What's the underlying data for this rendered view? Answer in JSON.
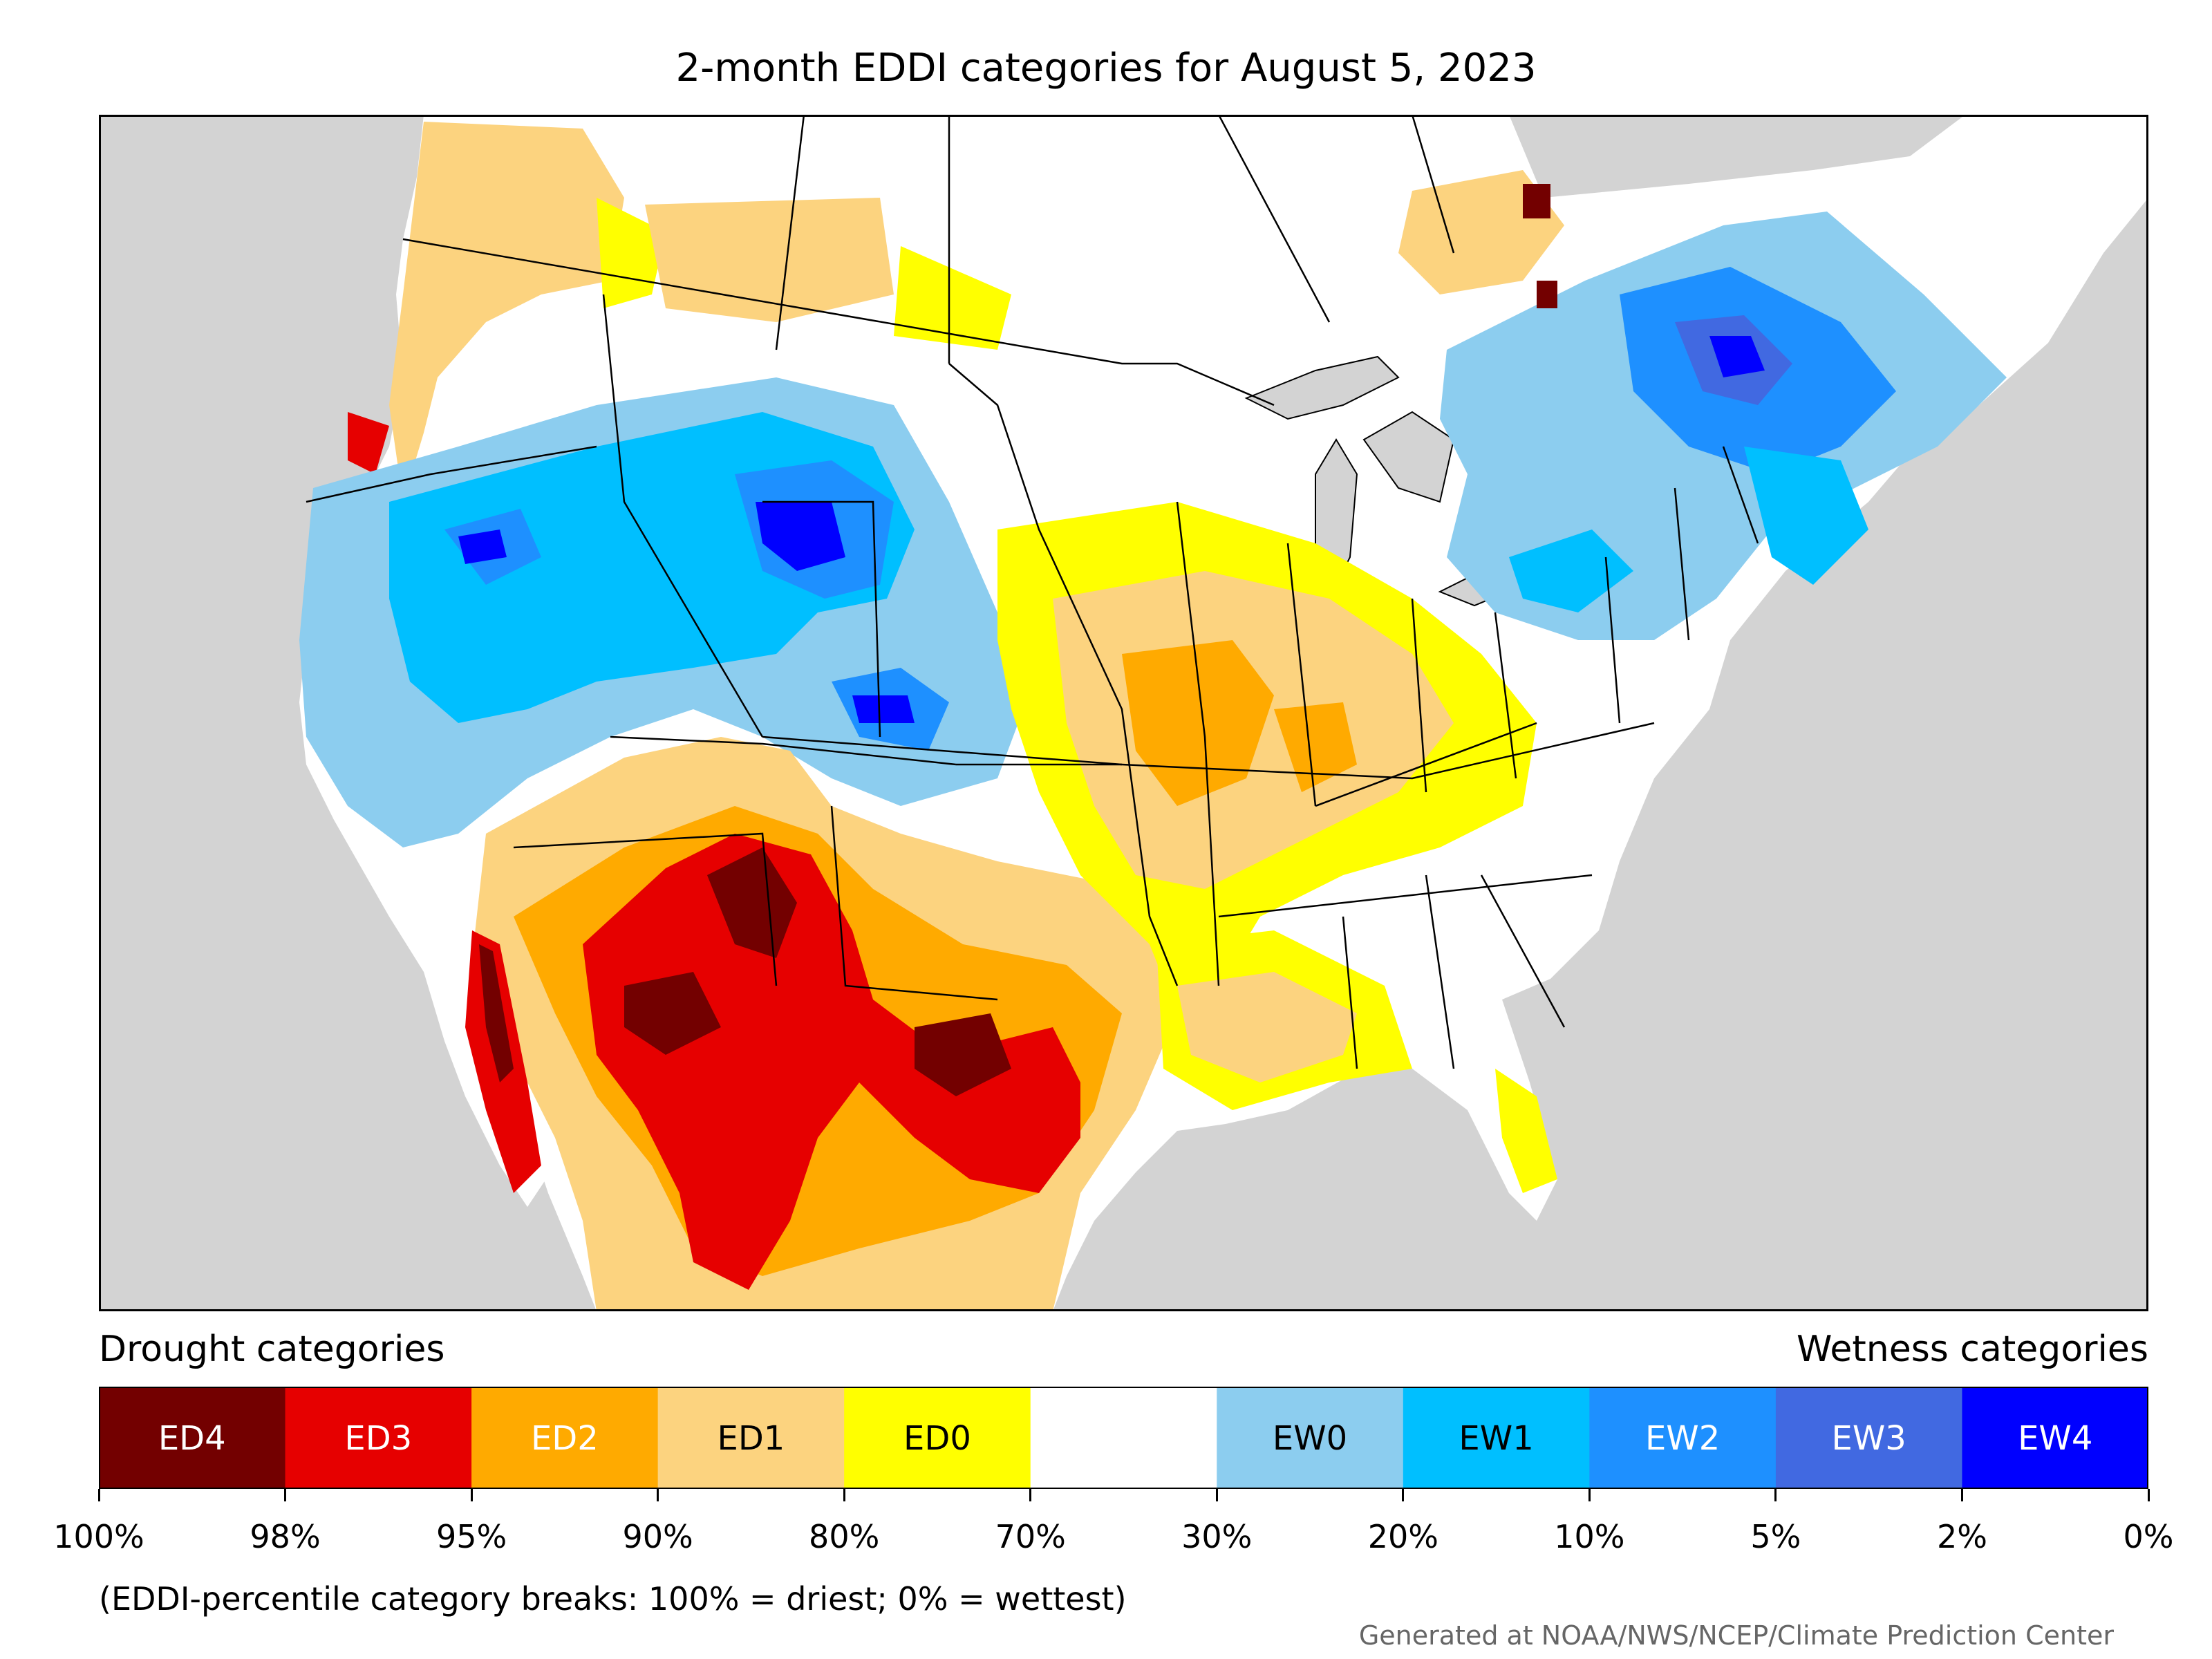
{
  "title": "2-month EDDI categories for August 5, 2023",
  "legend": {
    "drought_heading": "Drought categories",
    "wetness_heading": "Wetness categories",
    "categories": [
      {
        "label": "ED4",
        "color": "#730000",
        "text_color": "#ffffff"
      },
      {
        "label": "ED3",
        "color": "#e60000",
        "text_color": "#ffffff"
      },
      {
        "label": "ED2",
        "color": "#ffaa00",
        "text_color": "#ffffff"
      },
      {
        "label": "ED1",
        "color": "#fcd37f",
        "text_color": "#000000"
      },
      {
        "label": "ED0",
        "color": "#ffff00",
        "text_color": "#000000"
      },
      {
        "label": "",
        "color": "#ffffff",
        "text_color": "#000000"
      },
      {
        "label": "EW0",
        "color": "#8ccdef",
        "text_color": "#000000"
      },
      {
        "label": "EW1",
        "color": "#00bfff",
        "text_color": "#000000"
      },
      {
        "label": "EW2",
        "color": "#1e90ff",
        "text_color": "#ffffff"
      },
      {
        "label": "EW3",
        "color": "#4169e1",
        "text_color": "#ffffff"
      },
      {
        "label": "EW4",
        "color": "#0000ff",
        "text_color": "#ffffff"
      }
    ],
    "breaks": [
      "100%",
      "98%",
      "95%",
      "90%",
      "80%",
      "70%",
      "30%",
      "20%",
      "10%",
      "5%",
      "2%",
      "0%"
    ],
    "note": "(EDDI-percentile category breaks: 100% = driest; 0% = wettest)"
  },
  "credit": "Generated at NOAA/NWS/NCEP/Climate Prediction Center",
  "map": {
    "ocean_color": "#d3d3d3",
    "land_color": "#ffffff"
  }
}
